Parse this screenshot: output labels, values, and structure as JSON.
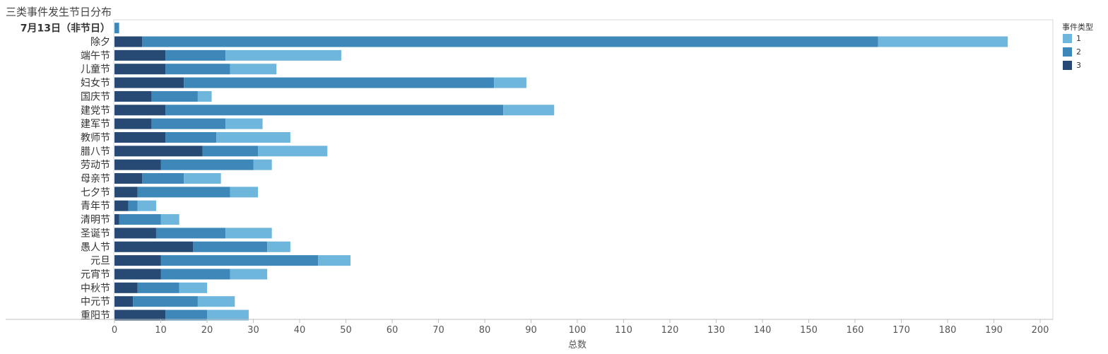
{
  "title": "三类事件发生节日分布",
  "chart_data": {
    "type": "bar",
    "orientation": "horizontal",
    "stacked": true,
    "title": "三类事件发生节日分布",
    "xlabel": "总数",
    "ylabel": "",
    "xlim": [
      0,
      200
    ],
    "xticks": [
      0,
      10,
      20,
      30,
      40,
      50,
      60,
      70,
      80,
      90,
      100,
      110,
      120,
      130,
      140,
      150,
      160,
      170,
      180,
      190,
      200
    ],
    "categories": [
      "7月13日（非节日）",
      "除夕",
      "端午节",
      "儿童节",
      "妇女节",
      "国庆节",
      "建党节",
      "建军节",
      "教师节",
      "腊八节",
      "劳动节",
      "母亲节",
      "七夕节",
      "青年节",
      "清明节",
      "圣诞节",
      "愚人节",
      "元旦",
      "元宵节",
      "中秋节",
      "中元节",
      "重阳节"
    ],
    "highlight_category": "7月13日（非节日）",
    "legend_title": "事件类型",
    "legend_position": "top-right",
    "grid": false,
    "series": [
      {
        "name": "3",
        "color": "#264a74",
        "values": [
          0,
          6,
          11,
          11,
          15,
          8,
          11,
          8,
          11,
          19,
          10,
          6,
          5,
          3,
          1,
          9,
          17,
          10,
          10,
          5,
          4,
          11
        ]
      },
      {
        "name": "2",
        "color": "#3d88b9",
        "values": [
          1,
          159,
          13,
          14,
          67,
          10,
          73,
          16,
          11,
          12,
          20,
          9,
          20,
          2,
          9,
          15,
          16,
          34,
          15,
          9,
          14,
          9
        ]
      },
      {
        "name": "1",
        "color": "#6fb6dc",
        "values": [
          0,
          28,
          25,
          10,
          7,
          3,
          11,
          8,
          16,
          15,
          4,
          8,
          6,
          4,
          4,
          10,
          5,
          7,
          8,
          6,
          8,
          9
        ]
      }
    ],
    "legend_order": [
      "1",
      "2",
      "3"
    ]
  }
}
